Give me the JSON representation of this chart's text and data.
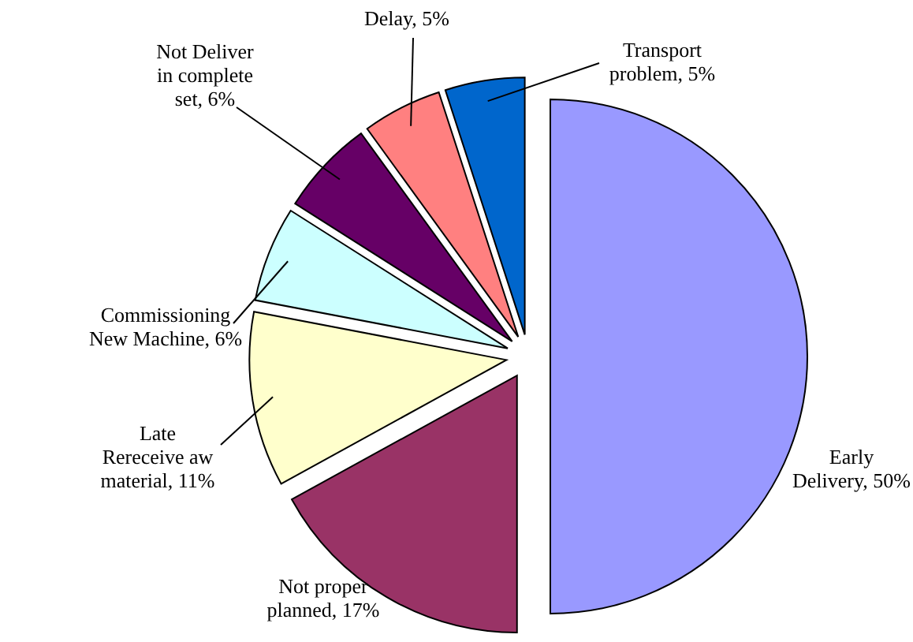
{
  "chart_data": {
    "type": "pie",
    "categories": [
      "Early Delivery",
      "Not proper planned",
      "Late Rereceive aw material",
      "Commissioning New Machine",
      "Not Deliver in complete set",
      "Delay",
      "Transport problem"
    ],
    "values": [
      50,
      17,
      11,
      6,
      6,
      5,
      5
    ],
    "value_labels": [
      "50%",
      "17%",
      "11%",
      "6%",
      "6%",
      "5%",
      "5%"
    ],
    "colors": [
      "#9999ff",
      "#993366",
      "#ffffcc",
      "#ccffff",
      "#660066",
      "#ff8080",
      "#0066cc"
    ]
  }
}
